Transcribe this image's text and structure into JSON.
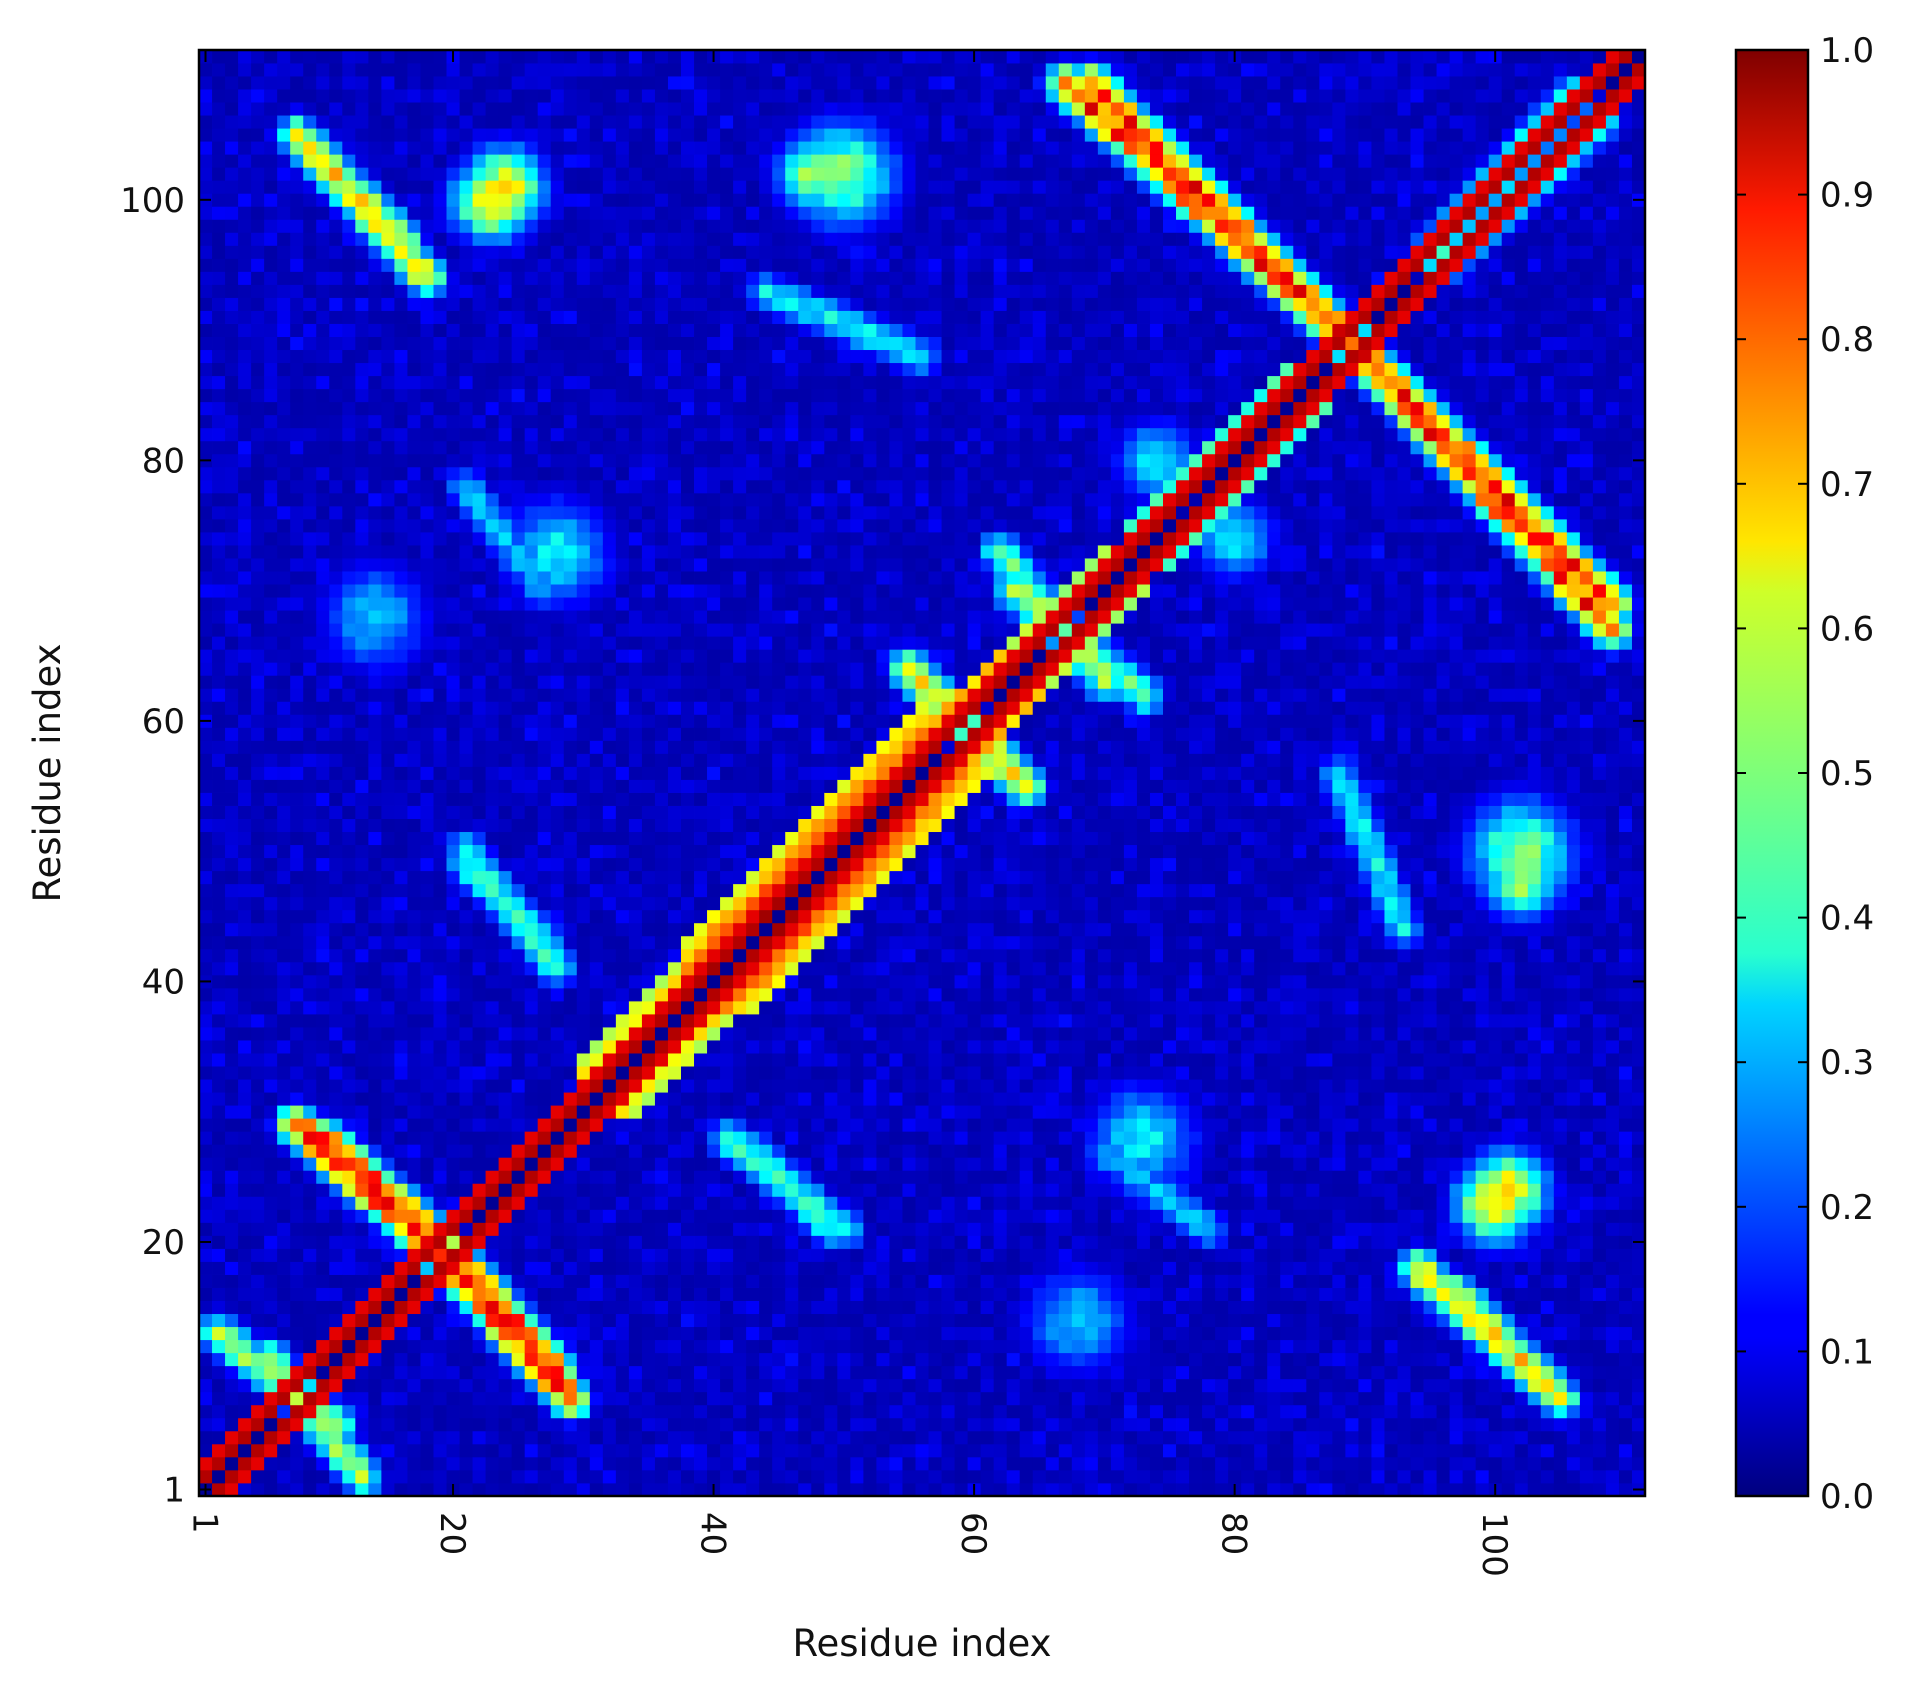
{
  "chart_data": {
    "type": "heatmap",
    "title": "",
    "xlabel": "Residue index",
    "ylabel": "Residue index",
    "n_residues": 111,
    "xlim": [
      1,
      111
    ],
    "ylim": [
      1,
      111
    ],
    "x_ticks": [
      "1",
      "20",
      "40",
      "60",
      "80",
      "100"
    ],
    "y_ticks": [
      "1",
      "20",
      "40",
      "60",
      "80",
      "100"
    ],
    "colormap": "jet",
    "colorbar": {
      "range": [
        0.0,
        1.0
      ],
      "ticks": [
        "0.0",
        "0.1",
        "0.2",
        "0.3",
        "0.4",
        "0.5",
        "0.6",
        "0.7",
        "0.8",
        "0.9",
        "1.0"
      ]
    },
    "features": [
      {
        "kind": "diagonal",
        "from": 1,
        "to": 111,
        "value": 1.0,
        "width": 2
      },
      {
        "kind": "band",
        "from": 38,
        "to": 56,
        "value": 0.97,
        "width": 5
      },
      {
        "kind": "band",
        "from": 30,
        "to": 40,
        "value": 0.8,
        "width": 4
      },
      {
        "kind": "band",
        "from": 56,
        "to": 62,
        "value": 0.85,
        "width": 3
      },
      {
        "kind": "band",
        "from": 62,
        "to": 70,
        "value": 0.7,
        "width": 3
      },
      {
        "kind": "band",
        "from": 72,
        "to": 84,
        "value": 0.55,
        "width": 3
      },
      {
        "kind": "anti",
        "x1": 2,
        "y1": 13,
        "x2": 11,
        "y2": 6,
        "value": 0.6
      },
      {
        "kind": "anti",
        "x1": 10,
        "y1": 28,
        "x2": 19,
        "y2": 20,
        "value": 0.9
      },
      {
        "kind": "anti",
        "x1": 19,
        "y1": 19,
        "x2": 29,
        "y2": 8,
        "value": 0.9
      },
      {
        "kind": "anti",
        "x1": 86,
        "y1": 92,
        "x2": 109,
        "y2": 69,
        "value": 0.9
      },
      {
        "kind": "anti",
        "x1": 67,
        "y1": 109,
        "x2": 90,
        "y2": 88,
        "value": 0.9
      },
      {
        "kind": "anti",
        "x1": 106,
        "y1": 108,
        "x2": 95,
        "y2": 96,
        "value": 0.55
      },
      {
        "kind": "anti",
        "x1": 9,
        "y1": 104,
        "x2": 18,
        "y2": 94,
        "value": 0.7
      },
      {
        "kind": "anti",
        "x1": 97,
        "y1": 16,
        "x2": 105,
        "y2": 8,
        "value": 0.7
      },
      {
        "kind": "anti",
        "x1": 55,
        "y1": 64,
        "x2": 64,
        "y2": 55,
        "value": 0.7
      },
      {
        "kind": "anti",
        "x1": 62,
        "y1": 73,
        "x2": 70,
        "y2": 63,
        "value": 0.55
      },
      {
        "kind": "anti",
        "x1": 21,
        "y1": 49,
        "x2": 27,
        "y2": 43,
        "value": 0.45
      },
      {
        "kind": "anti",
        "x1": 41,
        "y1": 28,
        "x2": 50,
        "y2": 21,
        "value": 0.45
      },
      {
        "kind": "anti",
        "x1": 70,
        "y1": 27,
        "x2": 78,
        "y2": 21,
        "value": 0.35
      },
      {
        "kind": "anti",
        "x1": 88,
        "y1": 56,
        "x2": 93,
        "y2": 44,
        "value": 0.4
      },
      {
        "kind": "blob",
        "x": 23,
        "y": 100,
        "r": 3,
        "value": 0.75
      },
      {
        "kind": "blob",
        "x": 101,
        "y": 24,
        "r": 3,
        "value": 0.7
      },
      {
        "kind": "blob",
        "x": 102,
        "y": 48,
        "r": 3,
        "value": 0.6
      },
      {
        "kind": "blob",
        "x": 50,
        "y": 102,
        "r": 4,
        "value": 0.55
      },
      {
        "kind": "blob",
        "x": 28,
        "y": 73,
        "r": 4,
        "value": 0.4
      },
      {
        "kind": "blob",
        "x": 14,
        "y": 68,
        "r": 4,
        "value": 0.35
      },
      {
        "kind": "blob",
        "x": 74,
        "y": 80,
        "r": 3,
        "value": 0.4
      }
    ]
  }
}
